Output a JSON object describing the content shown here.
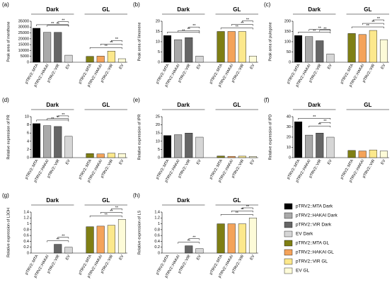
{
  "chart_data": [
    {
      "type": "bar",
      "label": "(a)",
      "ylabel": "Peak area of menthone",
      "groups": [
        "Dark",
        "GL"
      ],
      "categories": [
        "pTRV2::MTA",
        "pTRV2::HAKAI",
        "pTRV2::VIR",
        "EV",
        "pTRV2::MTA",
        "pTRV2::HAKAI",
        "pTRV2::VIR",
        "EV"
      ],
      "values": [
        29000,
        25500,
        25500,
        6000,
        5000,
        5200,
        9500,
        3000
      ],
      "ylim": [
        0,
        35000
      ],
      "yticks": [
        0,
        5000,
        10000,
        15000,
        20000,
        25000,
        30000,
        35000
      ],
      "brackets": [
        {
          "label": "**",
          "between": [
            0,
            3
          ]
        },
        {
          "label": "**",
          "between": [
            1,
            3
          ]
        },
        {
          "label": "**",
          "between": [
            2,
            3
          ]
        },
        {
          "label": "**",
          "between": [
            4,
            7
          ]
        },
        {
          "label": "**",
          "between": [
            5,
            7
          ]
        },
        {
          "label": "**",
          "between": [
            6,
            7
          ]
        }
      ]
    },
    {
      "type": "bar",
      "label": "(b)",
      "ylabel": "Peak area of limonene",
      "groups": [
        "Dark",
        "GL"
      ],
      "categories": [
        "pTRV2::MTA",
        "pTRV2::HAKAI",
        "pTRV2::VIR",
        "EV",
        "pTRV2::MTA",
        "pTRV2::HAKAI",
        "pTRV2::VIR",
        "EV"
      ],
      "values": [
        13,
        11,
        12,
        3,
        15,
        15,
        15,
        3
      ],
      "ylim": [
        0,
        20
      ],
      "yticks": [
        0,
        5,
        10,
        15,
        20
      ],
      "brackets": [
        {
          "label": "**",
          "between": [
            0,
            3
          ]
        },
        {
          "label": "**",
          "between": [
            1,
            3
          ]
        },
        {
          "label": "**",
          "between": [
            2,
            3
          ]
        },
        {
          "label": "**",
          "between": [
            4,
            7
          ]
        },
        {
          "label": "**",
          "between": [
            5,
            7
          ]
        },
        {
          "label": "**",
          "between": [
            6,
            7
          ]
        }
      ]
    },
    {
      "type": "bar",
      "label": "(c)",
      "ylabel": "Peak area of pulegone",
      "groups": [
        "Dark",
        "GL"
      ],
      "categories": [
        "pTRV2::MTA",
        "pTRV2::HAKAI",
        "pTRV2::VIR",
        "EV",
        "pTRV2::MTA",
        "pTRV2::HAKAI",
        "pTRV2::VIR",
        "EV"
      ],
      "values": [
        130,
        125,
        105,
        40,
        140,
        135,
        155,
        110
      ],
      "ylim": [
        0,
        200
      ],
      "yticks": [
        0,
        50,
        100,
        150,
        200
      ],
      "brackets": [
        {
          "label": "**",
          "between": [
            0,
            3
          ]
        },
        {
          "label": "**",
          "between": [
            1,
            3
          ]
        },
        {
          "label": "**",
          "between": [
            2,
            3
          ]
        },
        {
          "label": "**",
          "between": [
            4,
            7
          ]
        },
        {
          "label": "**",
          "between": [
            5,
            7
          ]
        },
        {
          "label": "**",
          "between": [
            6,
            7
          ]
        }
      ]
    },
    {
      "type": "bar",
      "label": "(d)",
      "ylabel": "Relative expression of PR",
      "groups": [
        "Dark",
        "GL"
      ],
      "categories": [
        "pTRV2::MTA",
        "pTRV2::HAKAI",
        "pTRV2::VIR",
        "EV",
        "pTRV2::MTA",
        "pTRV2::HAKAI",
        "pTRV2::VIR",
        "EV"
      ],
      "values": [
        8.3,
        7.8,
        7.6,
        5.2,
        1.0,
        0.9,
        1.1,
        1.0
      ],
      "ylim": [
        0,
        10
      ],
      "yticks": [
        0,
        2,
        4,
        6,
        8,
        10
      ],
      "brackets": [
        {
          "label": "**",
          "between": [
            0,
            3
          ]
        },
        {
          "label": "**",
          "between": [
            1,
            3
          ]
        },
        {
          "label": "**",
          "between": [
            2,
            3
          ]
        }
      ]
    },
    {
      "type": "bar",
      "label": "(e)",
      "ylabel": "Relative expression of IPR",
      "groups": [
        "Dark",
        "GL"
      ],
      "categories": [
        "pTRV2::MTA",
        "pTRV2::HAKAI",
        "pTRV2::VIR",
        "EV",
        "pTRV2::MTA",
        "pTRV2::HAKAI",
        "pTRV2::VIR",
        "EV"
      ],
      "values": [
        13.5,
        14,
        15,
        12.5,
        1,
        0.8,
        0.9,
        0.7
      ],
      "ylim": [
        0,
        25
      ],
      "yticks": [
        0,
        5,
        10,
        15,
        20,
        25
      ],
      "brackets": []
    },
    {
      "type": "bar",
      "label": "(f)",
      "ylabel": "Relative expression of IPD",
      "groups": [
        "Dark",
        "GL"
      ],
      "categories": [
        "pTRV2::MTA",
        "pTRV2::HAKAI",
        "pTRV2::VIR",
        "EV",
        "pTRV2::MTA",
        "pTRV2::HAKAI",
        "pTRV2::VIR",
        "EV"
      ],
      "values": [
        35,
        22,
        24,
        20,
        7,
        6.5,
        7.5,
        6.5
      ],
      "ylim": [
        0,
        40
      ],
      "yticks": [
        0,
        10,
        20,
        30,
        40
      ],
      "brackets": [
        {
          "label": "**",
          "between": [
            0,
            3
          ]
        },
        {
          "label": "**",
          "between": [
            1,
            3
          ]
        },
        {
          "label": "**",
          "between": [
            2,
            3
          ]
        }
      ]
    },
    {
      "type": "bar",
      "label": "(g)",
      "ylabel": "Relative expression of L3OH",
      "groups": [
        "Dark",
        "GL"
      ],
      "categories": [
        "pTRV2::MTA",
        "pTRV2::HAKAI",
        "pTRV2::VIR",
        "EV",
        "pTRV2::MTA",
        "pTRV2::HAKAI",
        "pTRV2::VIR",
        "EV"
      ],
      "values": [
        0,
        0,
        0.3,
        0.2,
        0.9,
        0.92,
        0.95,
        1.15
      ],
      "ylim": [
        0,
        1.4
      ],
      "yticks": [
        0,
        0.2,
        0.4,
        0.6,
        0.8,
        1,
        1.2,
        1.4
      ],
      "brackets": [
        {
          "label": "**",
          "between": [
            1,
            3
          ]
        },
        {
          "label": "**",
          "between": [
            2,
            3
          ]
        },
        {
          "label": "**",
          "between": [
            4,
            7
          ]
        },
        {
          "label": "**",
          "between": [
            5,
            7
          ]
        },
        {
          "label": "**",
          "between": [
            6,
            7
          ]
        }
      ]
    },
    {
      "type": "bar",
      "label": "(h)",
      "ylabel": "Relative expression of LS",
      "groups": [
        "Dark",
        "GL"
      ],
      "categories": [
        "pTRV2::MTA",
        "pTRV2::HAKAI",
        "pTRV2::VIR",
        "EV",
        "pTRV2::MTA",
        "pTRV2::HAKAI",
        "pTRV2::VIR",
        "EV"
      ],
      "values": [
        0,
        0,
        0.25,
        0.15,
        1.0,
        1.0,
        1.0,
        1.2
      ],
      "ylim": [
        0,
        1.4
      ],
      "yticks": [
        0,
        0.2,
        0.4,
        0.6,
        0.8,
        1,
        1.2,
        1.4
      ],
      "brackets": [
        {
          "label": "**",
          "between": [
            1,
            3
          ]
        },
        {
          "label": "**",
          "between": [
            2,
            3
          ]
        },
        {
          "label": "**",
          "between": [
            4,
            7
          ]
        },
        {
          "label": "**",
          "between": [
            5,
            7
          ]
        },
        {
          "label": "**",
          "between": [
            6,
            7
          ]
        }
      ]
    }
  ],
  "legend": {
    "names": [
      "pTRV2::MTA Dark",
      "pTRV2::HAKAI Dark",
      "pTRV2::VIR Dark",
      "EV Dark",
      "pTRV2::MTA GL",
      "pTRV2::HAKAI GL",
      "pTRV2::VIR GL",
      "EV GL"
    ],
    "colors": [
      "#000000",
      "#a9a9a9",
      "#666666",
      "#d6d6d6",
      "#7f7f14",
      "#f4a35a",
      "#fce88c",
      "#fdfbd8"
    ]
  }
}
